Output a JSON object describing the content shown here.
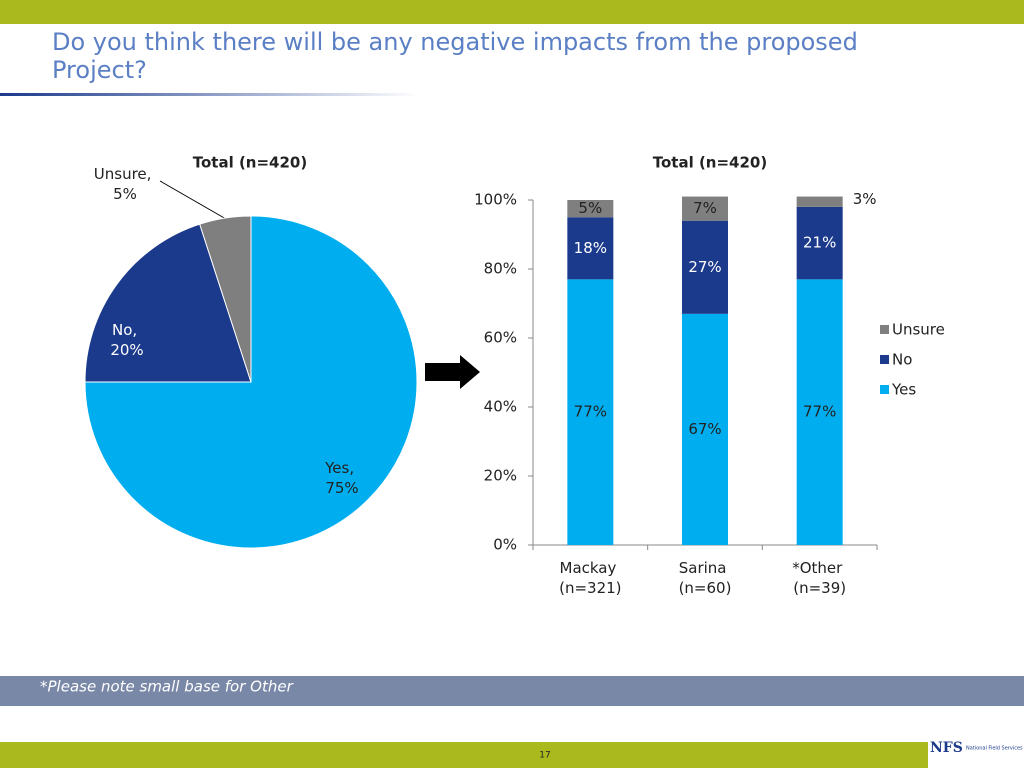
{
  "slide": {
    "title": "Do you think there will be any negative impacts from the proposed Project?",
    "footnote": "*Please note small base for Other",
    "page_number": "17",
    "logo": {
      "mark": "NFS",
      "name": "National Field Services"
    }
  },
  "chart_data": [
    {
      "type": "pie",
      "title": "Total (n=420)",
      "categories": [
        "Yes",
        "No",
        "Unsure"
      ],
      "values": [
        75,
        20,
        5
      ],
      "value_labels": [
        "Yes, 75%",
        "No, 20%",
        "Unsure, 5%"
      ],
      "colors": [
        "#00aeef",
        "#1b3a8c",
        "#7f7f7f"
      ]
    },
    {
      "type": "stacked_bar",
      "title": "Total (n=420)",
      "categories": [
        "Mackay (n=321)",
        "Sarina (n=60)",
        "*Other (n=39)"
      ],
      "series": [
        {
          "name": "Yes",
          "color": "#00aeef",
          "values": [
            77,
            67,
            77
          ],
          "value_labels": [
            "77%",
            "67%",
            "77%"
          ]
        },
        {
          "name": "No",
          "color": "#1b3a8c",
          "values": [
            18,
            27,
            21
          ],
          "value_labels": [
            "18%",
            "27%",
            "21%"
          ]
        },
        {
          "name": "Unsure",
          "color": "#7f7f7f",
          "values": [
            5,
            7,
            3
          ],
          "value_labels": [
            "5%",
            "7%",
            "3%"
          ]
        }
      ],
      "ylim": [
        0,
        100
      ],
      "yticks": [
        {
          "value": 0,
          "label": "0%"
        },
        {
          "value": 20,
          "label": "20%"
        },
        {
          "value": 40,
          "label": "40%"
        },
        {
          "value": 60,
          "label": "60%"
        },
        {
          "value": 80,
          "label": "80%"
        },
        {
          "value": 100,
          "label": "100%"
        }
      ],
      "legend": "right"
    }
  ]
}
